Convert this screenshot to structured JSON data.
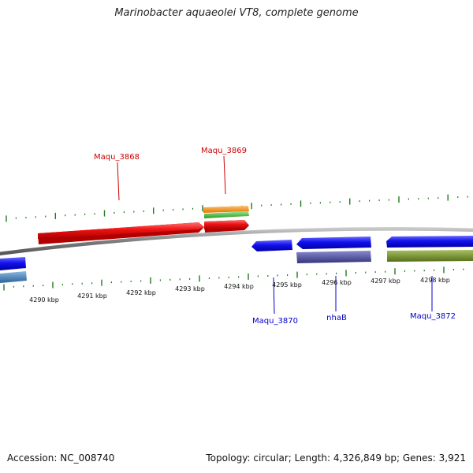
{
  "title": "Marinobacter aquaeolei VT8, complete genome",
  "footer": {
    "accession": "Accession: NC_008740",
    "summary": "Topology: circular; Length: 4,326,849 bp; Genes: 3,921"
  },
  "scale": {
    "unit": "kbp",
    "labels": [
      "4290 kbp",
      "4291 kbp",
      "4292 kbp",
      "4293 kbp",
      "4294 kbp",
      "4295 kbp",
      "4296 kbp",
      "4297 kbp",
      "4298 kbp"
    ]
  },
  "gene_labels": {
    "maqu_3868": "Maqu_3868",
    "maqu_3869": "Maqu_3869",
    "maqu_3870": "Maqu_3870",
    "nhab": "nhaB",
    "maqu_3872": "Maqu_3872"
  },
  "colors": {
    "forward_label": "#cc0000",
    "reverse_label": "#0000cc",
    "tick": "#1e7a1e",
    "genome_line": "#8a8a8a",
    "gene_forward": "#ee1111",
    "gene_reverse": "#1111ee",
    "orange_feature": "#f08a10",
    "green_feature": "#44bb33",
    "purple_feature": "#4a4a96",
    "olive_feature": "#6b8a22",
    "steel_feature": "#3f7fb5"
  }
}
